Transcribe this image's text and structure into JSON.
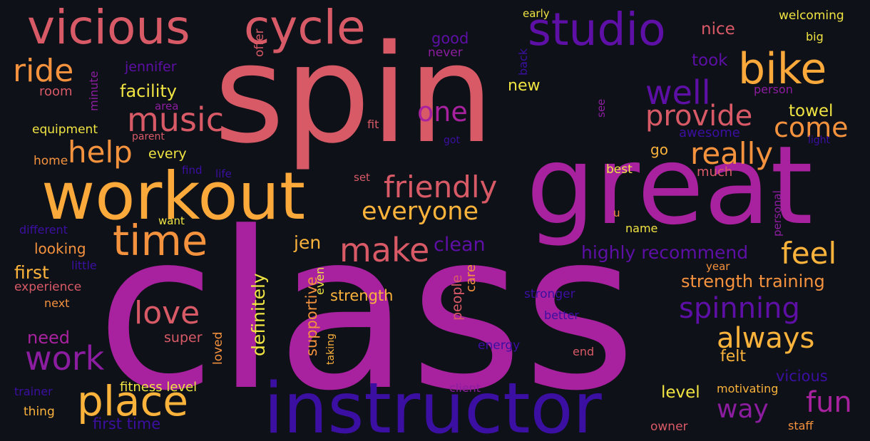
{
  "words": [
    {
      "text": "spin",
      "color": "#d95a67"
    },
    {
      "text": "class",
      "color": "#a8229f"
    },
    {
      "text": "great",
      "color": "#a8229f"
    },
    {
      "text": "instructor",
      "color": "#3b0fa2"
    },
    {
      "text": "workout",
      "color": "#fba93b"
    },
    {
      "text": "vicious",
      "color": "#d95a67"
    },
    {
      "text": "cycle",
      "color": "#d95a67"
    },
    {
      "text": "studio",
      "color": "#5d0fa6"
    },
    {
      "text": "bike",
      "color": "#fba93b"
    },
    {
      "text": "time",
      "color": "#f4923e"
    },
    {
      "text": "place",
      "color": "#fbb33c"
    },
    {
      "text": "music",
      "color": "#d95a67"
    },
    {
      "text": "well",
      "color": "#5d0fa6"
    },
    {
      "text": "one",
      "color": "#a8229f"
    },
    {
      "text": "ride",
      "color": "#f4923e"
    },
    {
      "text": "help",
      "color": "#f4923e"
    },
    {
      "text": "friendly",
      "color": "#d95a67"
    },
    {
      "text": "really",
      "color": "#f4923e"
    },
    {
      "text": "come",
      "color": "#f4923e"
    },
    {
      "text": "provide",
      "color": "#d95a67"
    },
    {
      "text": "make",
      "color": "#d95a67"
    },
    {
      "text": "everyone",
      "color": "#fbb33c"
    },
    {
      "text": "love",
      "color": "#d95a67"
    },
    {
      "text": "work",
      "color": "#8c1da0"
    },
    {
      "text": "feel",
      "color": "#fbb33c"
    },
    {
      "text": "spinning",
      "color": "#5d0fa6"
    },
    {
      "text": "always",
      "color": "#fbb33c"
    },
    {
      "text": "fun",
      "color": "#a8229f"
    },
    {
      "text": "way",
      "color": "#8c1da0"
    },
    {
      "text": "facility",
      "color": "#f0e442"
    },
    {
      "text": "highly recommend",
      "color": "#5d0fa6"
    },
    {
      "text": "strength training",
      "color": "#f4923e"
    },
    {
      "text": "clean",
      "color": "#5d0fa6"
    },
    {
      "text": "definitely",
      "color": "#f0e442"
    },
    {
      "text": "supportive",
      "color": "#f4923e"
    },
    {
      "text": "first",
      "color": "#fbb33c"
    },
    {
      "text": "need",
      "color": "#a8229f"
    },
    {
      "text": "jen",
      "color": "#fbb33c"
    },
    {
      "text": "new",
      "color": "#f0e442"
    },
    {
      "text": "towel",
      "color": "#f0e442"
    },
    {
      "text": "took",
      "color": "#5d0fa6"
    },
    {
      "text": "good",
      "color": "#5d0fa6"
    },
    {
      "text": "nice",
      "color": "#d95a67"
    },
    {
      "text": "strength",
      "color": "#fbb33c"
    },
    {
      "text": "level",
      "color": "#f0e442"
    },
    {
      "text": "felt",
      "color": "#fbb33c"
    },
    {
      "text": "fitness level",
      "color": "#f0e442"
    },
    {
      "text": "first time",
      "color": "#3b0fa2"
    },
    {
      "text": "vicious",
      "color": "#3b0fa2"
    },
    {
      "text": "motivating",
      "color": "#fbb33c"
    },
    {
      "text": "people",
      "color": "#d95a67"
    },
    {
      "text": "care",
      "color": "#f4923e"
    },
    {
      "text": "looking",
      "color": "#f4923e"
    },
    {
      "text": "jennifer",
      "color": "#5d0fa6"
    },
    {
      "text": "room",
      "color": "#d95a67"
    },
    {
      "text": "equipment",
      "color": "#f0e442"
    },
    {
      "text": "home",
      "color": "#f4923e"
    },
    {
      "text": "every",
      "color": "#f0e442"
    },
    {
      "text": "parent",
      "color": "#d95a67"
    },
    {
      "text": "area",
      "color": "#8c1da0"
    },
    {
      "text": "go",
      "color": "#fbb33c"
    },
    {
      "text": "awesome",
      "color": "#3b0fa2"
    },
    {
      "text": "much",
      "color": "#d95a67"
    },
    {
      "text": "best",
      "color": "#f0e442"
    },
    {
      "text": "name",
      "color": "#f0e442"
    },
    {
      "text": "year",
      "color": "#f4923e"
    },
    {
      "text": "stronger",
      "color": "#3b0fa2"
    },
    {
      "text": "better",
      "color": "#3b0fa2"
    },
    {
      "text": "energy",
      "color": "#3b0fa2"
    },
    {
      "text": "end",
      "color": "#d95a67"
    },
    {
      "text": "super",
      "color": "#d95a67"
    },
    {
      "text": "experience",
      "color": "#d95a67"
    },
    {
      "text": "next",
      "color": "#f4923e"
    },
    {
      "text": "little",
      "color": "#3b0fa2"
    },
    {
      "text": "different",
      "color": "#3b0fa2"
    },
    {
      "text": "want",
      "color": "#f0e442"
    },
    {
      "text": "find",
      "color": "#3b0fa2"
    },
    {
      "text": "life",
      "color": "#3b0fa2"
    },
    {
      "text": "set",
      "color": "#d95a67"
    },
    {
      "text": "fit",
      "color": "#d95a67"
    },
    {
      "text": "got",
      "color": "#3b0fa2"
    },
    {
      "text": "never",
      "color": "#8c1da0"
    },
    {
      "text": "early",
      "color": "#f0e442"
    },
    {
      "text": "welcoming",
      "color": "#f0e442"
    },
    {
      "text": "big",
      "color": "#f0e442"
    },
    {
      "text": "person",
      "color": "#8c1da0"
    },
    {
      "text": "light",
      "color": "#3b0fa2"
    },
    {
      "text": "u",
      "color": "#f4923e"
    },
    {
      "text": "client",
      "color": "#8c1da0"
    },
    {
      "text": "owner",
      "color": "#d95a67"
    },
    {
      "text": "staff",
      "color": "#f4923e"
    },
    {
      "text": "thing",
      "color": "#fbb33c"
    },
    {
      "text": "trainer",
      "color": "#3b0fa2"
    },
    {
      "text": "offer",
      "color": "#d95a67"
    },
    {
      "text": "minute",
      "color": "#8c1da0"
    },
    {
      "text": "back",
      "color": "#3b0fa2"
    },
    {
      "text": "see",
      "color": "#8c1da0"
    },
    {
      "text": "personal",
      "color": "#8c1da0"
    },
    {
      "text": "even",
      "color": "#f0e442"
    },
    {
      "text": "loved",
      "color": "#f4923e"
    },
    {
      "text": "taking",
      "color": "#fbb33c"
    }
  ]
}
